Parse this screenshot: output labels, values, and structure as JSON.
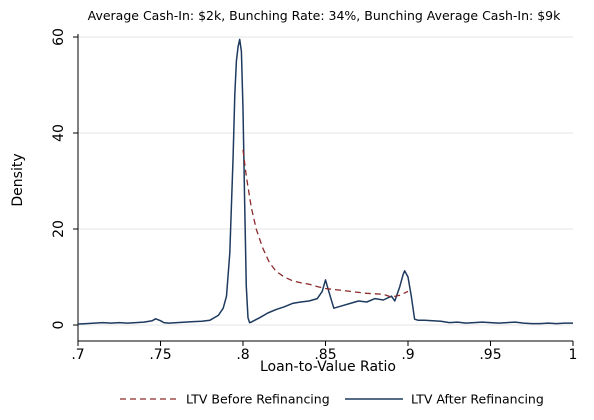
{
  "chart_data": {
    "type": "line",
    "title": "Average Cash-In: $2k, Bunching Rate: 34%, Bunching Average Cash-In: $9k",
    "xlabel": "Loan-to-Value Ratio",
    "ylabel": "Density",
    "xlim": [
      0.7,
      1.0
    ],
    "ylim": [
      0,
      60
    ],
    "x_ticks": [
      0.7,
      0.75,
      0.8,
      0.85,
      0.9,
      0.95,
      1.0
    ],
    "x_tick_labels": [
      ".7",
      ".75",
      ".8",
      ".85",
      ".9",
      ".95",
      "1"
    ],
    "y_ticks": [
      0,
      20,
      40,
      60
    ],
    "y_tick_labels": [
      "0",
      "20",
      "40",
      "60"
    ],
    "grid": "horizontal",
    "legend_position": "bottom",
    "series": [
      {
        "name": "LTV Before Refinancing",
        "color": "#8b2b2b",
        "dash": "dashed",
        "x": [
          0.8,
          0.802,
          0.805,
          0.808,
          0.812,
          0.816,
          0.82,
          0.825,
          0.83,
          0.835,
          0.84,
          0.845,
          0.85,
          0.855,
          0.86,
          0.865,
          0.87,
          0.875,
          0.88,
          0.885,
          0.89,
          0.895,
          0.9
        ],
        "values": [
          36.5,
          31.0,
          24.5,
          20.0,
          16.0,
          13.0,
          11.2,
          10.0,
          9.2,
          8.8,
          8.5,
          8.0,
          7.6,
          7.4,
          7.2,
          7.0,
          6.8,
          6.6,
          6.5,
          6.4,
          5.8,
          6.2,
          7.0
        ]
      },
      {
        "name": "LTV After Refinancing",
        "color": "#1e3a5f",
        "dash": "solid",
        "x": [
          0.7,
          0.705,
          0.71,
          0.715,
          0.72,
          0.725,
          0.73,
          0.735,
          0.74,
          0.745,
          0.747,
          0.75,
          0.752,
          0.755,
          0.76,
          0.765,
          0.77,
          0.775,
          0.78,
          0.785,
          0.788,
          0.79,
          0.792,
          0.794,
          0.795,
          0.796,
          0.797,
          0.798,
          0.799,
          0.8,
          0.801,
          0.802,
          0.803,
          0.804,
          0.805,
          0.806,
          0.81,
          0.815,
          0.82,
          0.825,
          0.83,
          0.835,
          0.84,
          0.845,
          0.848,
          0.85,
          0.852,
          0.855,
          0.86,
          0.865,
          0.87,
          0.875,
          0.88,
          0.885,
          0.89,
          0.892,
          0.895,
          0.897,
          0.898,
          0.9,
          0.902,
          0.904,
          0.906,
          0.91,
          0.915,
          0.92,
          0.925,
          0.93,
          0.935,
          0.94,
          0.945,
          0.95,
          0.955,
          0.96,
          0.965,
          0.97,
          0.975,
          0.98,
          0.985,
          0.99,
          0.995,
          1.0
        ],
        "values": [
          0.2,
          0.3,
          0.4,
          0.5,
          0.4,
          0.5,
          0.4,
          0.5,
          0.6,
          0.9,
          1.3,
          0.9,
          0.5,
          0.4,
          0.5,
          0.6,
          0.7,
          0.8,
          1.0,
          2.0,
          3.5,
          6.0,
          15.0,
          35.0,
          48.0,
          55.0,
          58.0,
          59.5,
          57.0,
          45.0,
          25.0,
          8.0,
          1.5,
          0.5,
          0.6,
          0.8,
          1.5,
          2.5,
          3.2,
          3.8,
          4.5,
          4.8,
          5.0,
          5.5,
          7.0,
          9.4,
          7.0,
          3.5,
          4.0,
          4.5,
          5.0,
          4.8,
          5.5,
          5.2,
          6.0,
          5.0,
          8.0,
          10.5,
          11.3,
          10.0,
          6.0,
          1.2,
          1.0,
          1.0,
          0.9,
          0.8,
          0.5,
          0.6,
          0.4,
          0.5,
          0.6,
          0.5,
          0.4,
          0.5,
          0.6,
          0.4,
          0.3,
          0.3,
          0.4,
          0.3,
          0.4,
          0.4
        ]
      }
    ]
  }
}
